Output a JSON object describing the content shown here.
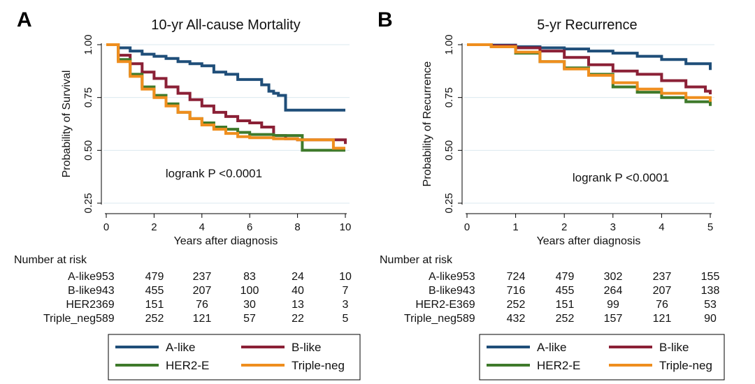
{
  "colors": {
    "A-like": "#1f4e79",
    "B-like": "#8b2036",
    "HER2-E": "#3f7a2b",
    "Triple-neg": "#ef8e1e",
    "gridline": "#dbe9ef",
    "axis": "#000000"
  },
  "chart_data": [
    {
      "type": "line",
      "panel_letter": "A",
      "title": "10-yr All-cause Mortality",
      "xlabel": "Years after diagnosis",
      "ylabel": "Probability of Survival",
      "xlim": [
        0,
        10
      ],
      "ylim": [
        0.25,
        1.0
      ],
      "xticks": [
        0,
        2,
        4,
        6,
        8,
        10
      ],
      "xtick_labels": [
        "0",
        "2",
        "4",
        "6",
        "8",
        "10"
      ],
      "yticks": [
        0.25,
        0.5,
        0.75,
        1.0
      ],
      "ytick_labels": [
        "0.25",
        "0.50",
        "0.75",
        "1.00"
      ],
      "annotation": "logrank P <0.0001",
      "series": [
        {
          "name": "A-like",
          "x": [
            0,
            0.5,
            1,
            1.5,
            2,
            2.5,
            3,
            3.5,
            4,
            4.5,
            5,
            5.5,
            6,
            6.5,
            6.8,
            7,
            7.2,
            7.5,
            8,
            9,
            10
          ],
          "y": [
            1.0,
            0.985,
            0.97,
            0.955,
            0.945,
            0.935,
            0.92,
            0.91,
            0.9,
            0.87,
            0.86,
            0.835,
            0.835,
            0.81,
            0.78,
            0.77,
            0.76,
            0.69,
            0.69,
            0.69,
            0.69
          ]
        },
        {
          "name": "B-like",
          "x": [
            0,
            0.5,
            1,
            1.5,
            2,
            2.5,
            3,
            3.5,
            4,
            4.5,
            5,
            5.5,
            6,
            6.5,
            7,
            7.5,
            8,
            9,
            10
          ],
          "y": [
            1.0,
            0.95,
            0.91,
            0.87,
            0.84,
            0.8,
            0.77,
            0.74,
            0.71,
            0.68,
            0.66,
            0.64,
            0.63,
            0.61,
            0.57,
            0.555,
            0.55,
            0.55,
            0.53
          ]
        },
        {
          "name": "HER2-E",
          "x": [
            0,
            0.5,
            1,
            1.5,
            2,
            2.5,
            3,
            3.5,
            4,
            4.5,
            5,
            5.5,
            6,
            7,
            8,
            8.2,
            9,
            10
          ],
          "y": [
            1.0,
            0.93,
            0.86,
            0.8,
            0.76,
            0.72,
            0.68,
            0.65,
            0.63,
            0.61,
            0.6,
            0.585,
            0.575,
            0.57,
            0.57,
            0.5,
            0.5,
            0.5
          ]
        },
        {
          "name": "Triple-neg",
          "x": [
            0,
            0.5,
            1,
            1.5,
            2,
            2.5,
            3,
            3.5,
            4,
            4.5,
            5,
            5.5,
            6,
            7,
            8,
            9,
            9.5,
            10
          ],
          "y": [
            1.0,
            0.92,
            0.85,
            0.79,
            0.75,
            0.71,
            0.68,
            0.65,
            0.62,
            0.6,
            0.58,
            0.565,
            0.56,
            0.555,
            0.55,
            0.55,
            0.51,
            0.51
          ]
        }
      ],
      "risk_table": {
        "heading": "Number at risk",
        "rows": [
          {
            "label": "A-like",
            "values": [
              "953",
              "479",
              "237",
              "83",
              "24",
              "10"
            ]
          },
          {
            "label": "B-like",
            "values": [
              "943",
              "455",
              "207",
              "100",
              "40",
              "7"
            ]
          },
          {
            "label": "HER2",
            "values": [
              "369",
              "151",
              "76",
              "30",
              "13",
              "3"
            ]
          },
          {
            "label": "Triple_neg",
            "values": [
              "589",
              "252",
              "121",
              "57",
              "22",
              "5"
            ]
          }
        ]
      },
      "legend": [
        "A-like",
        "B-like",
        "HER2-E",
        "Triple-neg"
      ]
    },
    {
      "type": "line",
      "panel_letter": "B",
      "title": "5-yr Recurrence",
      "xlabel": "Years after diagnosis",
      "ylabel": "Probability of Recurrence",
      "xlim": [
        0,
        5
      ],
      "ylim": [
        0.25,
        1.0
      ],
      "xticks": [
        0,
        1,
        2,
        3,
        4,
        5
      ],
      "xtick_labels": [
        "0",
        "1",
        "2",
        "3",
        "4",
        "5"
      ],
      "yticks": [
        0.25,
        0.5,
        0.75,
        1.0
      ],
      "ytick_labels": [
        "0.25",
        "0.50",
        "0.75",
        "1.00"
      ],
      "annotation": "logrank P <0.0001",
      "series": [
        {
          "name": "A-like",
          "x": [
            0,
            0.5,
            1,
            1.5,
            2,
            2.5,
            3,
            3.5,
            4,
            4.5,
            5
          ],
          "y": [
            1.0,
            0.998,
            0.99,
            0.985,
            0.98,
            0.97,
            0.96,
            0.945,
            0.93,
            0.91,
            0.88
          ]
        },
        {
          "name": "B-like",
          "x": [
            0,
            0.5,
            1,
            1.5,
            2,
            2.5,
            3,
            3.5,
            4,
            4.5,
            4.9,
            5
          ],
          "y": [
            1.0,
            0.995,
            0.985,
            0.97,
            0.94,
            0.905,
            0.875,
            0.86,
            0.83,
            0.8,
            0.78,
            0.765
          ]
        },
        {
          "name": "HER2-E",
          "x": [
            0,
            0.5,
            1,
            1.5,
            2,
            2.5,
            3,
            3.5,
            4,
            4.5,
            5
          ],
          "y": [
            1.0,
            0.99,
            0.96,
            0.92,
            0.89,
            0.86,
            0.8,
            0.775,
            0.75,
            0.73,
            0.71
          ]
        },
        {
          "name": "Triple-neg",
          "x": [
            0,
            0.5,
            1,
            1.5,
            2,
            2.5,
            3,
            3.5,
            4,
            4.5,
            5
          ],
          "y": [
            1.0,
            0.99,
            0.965,
            0.92,
            0.885,
            0.855,
            0.82,
            0.79,
            0.77,
            0.75,
            0.73
          ]
        }
      ],
      "risk_table": {
        "heading": "Number at risk",
        "rows": [
          {
            "label": "A-like",
            "values": [
              "953",
              "724",
              "479",
              "302",
              "237",
              "155"
            ]
          },
          {
            "label": "B-like",
            "values": [
              "943",
              "716",
              "455",
              "264",
              "207",
              "138"
            ]
          },
          {
            "label": "HER2-E",
            "values": [
              "369",
              "252",
              "151",
              "99",
              "76",
              "53"
            ]
          },
          {
            "label": "Triple_neg",
            "values": [
              "589",
              "432",
              "252",
              "157",
              "121",
              "90"
            ]
          }
        ]
      },
      "legend": [
        "A-like",
        "B-like",
        "HER2-E",
        "Triple-neg"
      ]
    }
  ]
}
